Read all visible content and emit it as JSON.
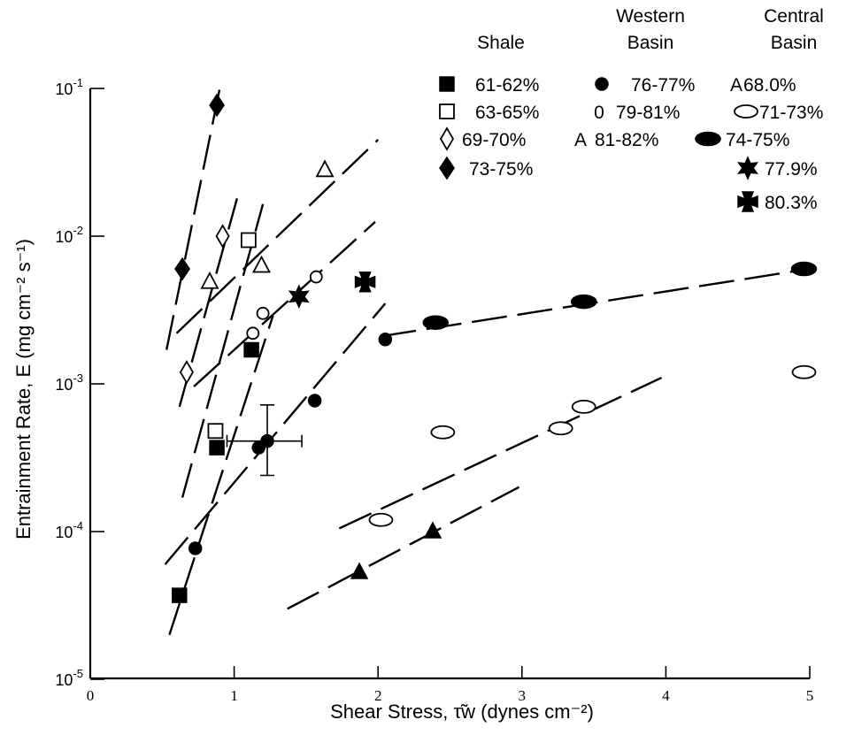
{
  "chart_data": {
    "type": "scatter",
    "title": "",
    "xlabel": "Shear Stress, τ̃w (dynes cm⁻²)",
    "ylabel": "Entrainment Rate, E (mg cm⁻² s⁻¹)",
    "xlim": [
      0,
      5
    ],
    "ylim": [
      1e-05,
      0.1
    ],
    "y_scale": "log",
    "x_ticks": [
      "0",
      "1",
      "2",
      "3",
      "4",
      "5"
    ],
    "y_ticks": [
      {
        "base": "10",
        "exp": "-1"
      },
      {
        "base": "10",
        "exp": "-2"
      },
      {
        "base": "10",
        "exp": "-3"
      },
      {
        "base": "10",
        "exp": "-4"
      },
      {
        "base": "10",
        "exp": "-5"
      }
    ],
    "legend_headers": [
      "Shale",
      "Western",
      "Basin",
      "Central",
      "Basin"
    ],
    "legend_placement": "top-right",
    "series": [
      {
        "name": "61-62%",
        "marker": "filled-square",
        "points": [
          [
            0.62,
            3.7e-05
          ],
          [
            0.88,
            0.00037
          ],
          [
            1.12,
            0.0017
          ]
        ],
        "fit": [
          [
            0.55,
            2e-05
          ],
          [
            1.27,
            0.0029
          ]
        ]
      },
      {
        "name": "63-65%",
        "marker": "open-square",
        "points": [
          [
            0.87,
            0.00048
          ],
          [
            1.1,
            0.0094
          ]
        ],
        "fit": [
          [
            0.64,
            0.00017
          ],
          [
            1.2,
            0.0165
          ]
        ]
      },
      {
        "name": "69-70%",
        "marker": "open-diamond",
        "points": [
          [
            0.67,
            0.0012
          ],
          [
            0.92,
            0.01
          ]
        ],
        "fit": [
          [
            0.62,
            0.0007
          ],
          [
            1.02,
            0.018
          ]
        ]
      },
      {
        "name": "73-75%",
        "marker": "filled-diamond",
        "points": [
          [
            0.64,
            0.006
          ],
          [
            0.88,
            0.077
          ]
        ],
        "fit": [
          [
            0.53,
            0.0017
          ],
          [
            0.9,
            0.1
          ]
        ]
      },
      {
        "name": "76-77%",
        "marker": "filled-circle",
        "points": [
          [
            0.73,
            7.7e-05
          ],
          [
            1.17,
            0.00037
          ],
          [
            1.56,
            0.00077
          ],
          [
            2.05,
            0.002
          ]
        ],
        "fit": [
          [
            0.52,
            6e-05
          ],
          [
            2.05,
            0.0035
          ]
        ]
      },
      {
        "name": "79-81%",
        "marker": "open-circle",
        "points": [
          [
            1.13,
            0.0022
          ],
          [
            1.2,
            0.003
          ],
          [
            1.57,
            0.0053
          ]
        ],
        "fit": [
          [
            0.72,
            0.00096
          ],
          [
            1.98,
            0.0125
          ]
        ]
      },
      {
        "name": "81-82%",
        "marker": "open-triangle",
        "points": [
          [
            0.83,
            0.0049
          ],
          [
            1.19,
            0.0063
          ],
          [
            1.63,
            0.028
          ]
        ],
        "fit": [
          [
            0.6,
            0.0022
          ],
          [
            2.0,
            0.045
          ]
        ]
      },
      {
        "name": "68.0%",
        "marker": "filled-triangle",
        "points": [
          [
            1.87,
            5.3e-05
          ],
          [
            2.38,
            0.0001
          ]
        ],
        "fit": [
          [
            1.37,
            3e-05
          ],
          [
            2.98,
            0.0002
          ]
        ]
      },
      {
        "name": "71-73%",
        "marker": "open-ellipse",
        "points": [
          [
            2.02,
            0.00012
          ],
          [
            2.45,
            0.00047
          ],
          [
            3.27,
            0.0005
          ],
          [
            3.43,
            0.0007
          ],
          [
            4.96,
            0.0012
          ]
        ],
        "fit": [
          [
            1.73,
            0.000105
          ],
          [
            3.97,
            0.0011
          ]
        ]
      },
      {
        "name": "74-75%",
        "marker": "filled-ellipse",
        "points": [
          [
            2.4,
            0.0026
          ],
          [
            3.43,
            0.0036
          ],
          [
            4.96,
            0.006
          ]
        ],
        "fit": [
          [
            2.02,
            0.0021
          ],
          [
            4.9,
            0.0058
          ]
        ]
      },
      {
        "name": "77.9%",
        "marker": "star",
        "points": [
          [
            1.45,
            0.0039
          ]
        ]
      },
      {
        "name": "80.3%",
        "marker": "maltese-cross",
        "points": [
          [
            1.91,
            0.0049
          ]
        ]
      }
    ],
    "error_bar_point": {
      "x": 1.23,
      "y": 0.00041,
      "x_err": [
        0.95,
        1.47
      ],
      "y_err": [
        0.00024,
        0.00072
      ]
    },
    "grid": false
  }
}
